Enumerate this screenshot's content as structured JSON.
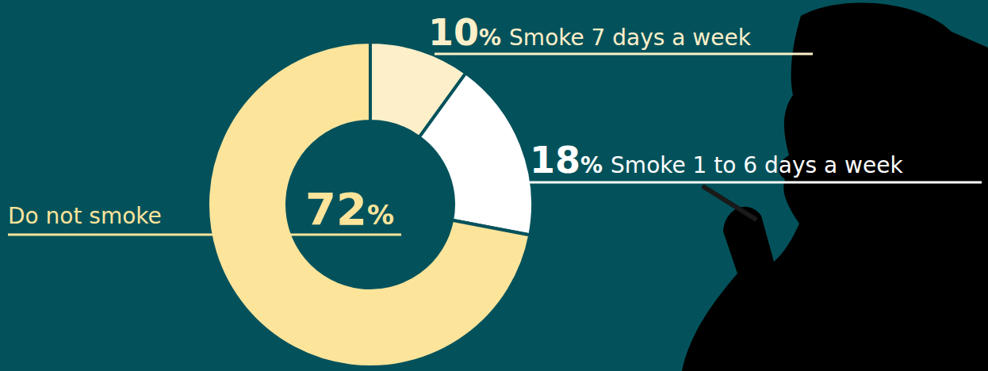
{
  "chart_data": {
    "type": "donut",
    "categories": [
      "Smoke 7 days a week",
      "Smoke 1 to 6 days a week",
      "Do not smoke"
    ],
    "values": [
      10,
      18,
      72
    ],
    "value_labels": [
      "10%",
      "18%",
      "72%"
    ],
    "colors": [
      "#fdefc9",
      "#ffffff",
      "#fde49b"
    ],
    "data_labels": true
  }
}
